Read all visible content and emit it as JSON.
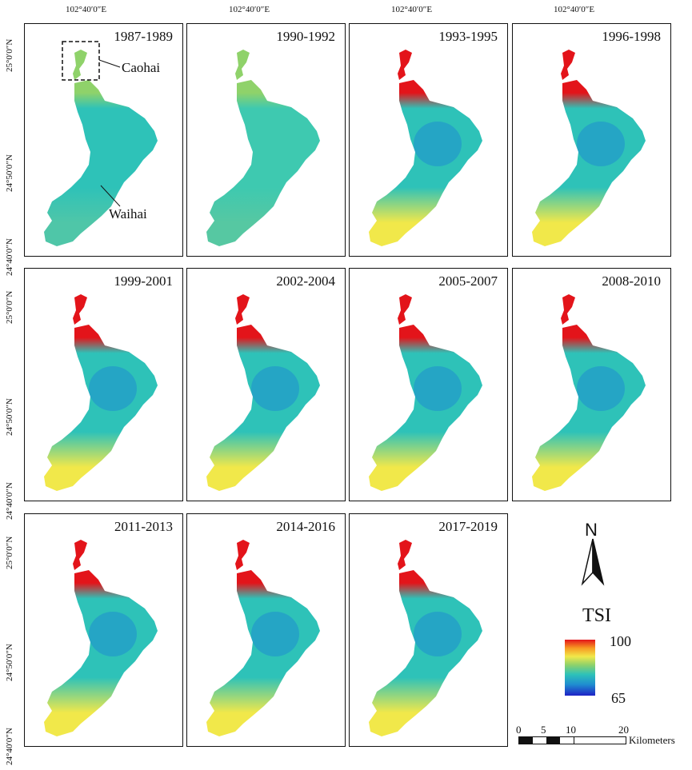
{
  "figure": {
    "longitude_label": "102°40′0″E",
    "latitude_labels": [
      "25°0′0″N",
      "24°50′0″N",
      "24°40′0″N"
    ]
  },
  "panels": [
    {
      "period": "1987-1989",
      "palette": "uniform"
    },
    {
      "period": "1990-1992",
      "palette": "uniform2"
    },
    {
      "period": "1993-1995",
      "palette": "mixed"
    },
    {
      "period": "1996-1998",
      "palette": "mixed"
    },
    {
      "period": "1999-2001",
      "palette": "mixed"
    },
    {
      "period": "2002-2004",
      "palette": "mixed"
    },
    {
      "period": "2005-2007",
      "palette": "mixed"
    },
    {
      "period": "2008-2010",
      "palette": "mixed"
    },
    {
      "period": "2011-2013",
      "palette": "mixed"
    },
    {
      "period": "2014-2016",
      "palette": "mixed"
    },
    {
      "period": "2017-2019",
      "palette": "mixed"
    }
  ],
  "annotations": {
    "caohai": "Caohai",
    "waihai": "Waihai"
  },
  "legend": {
    "north": "N",
    "title": "TSI",
    "max": "100",
    "min": "65",
    "colors": [
      "#1e22c6",
      "#2ec2b8",
      "#f1e84a",
      "#e3141a"
    ]
  },
  "scale": {
    "ticks": [
      "0",
      "5",
      "10",
      "20"
    ],
    "unit": "Kilometers"
  }
}
